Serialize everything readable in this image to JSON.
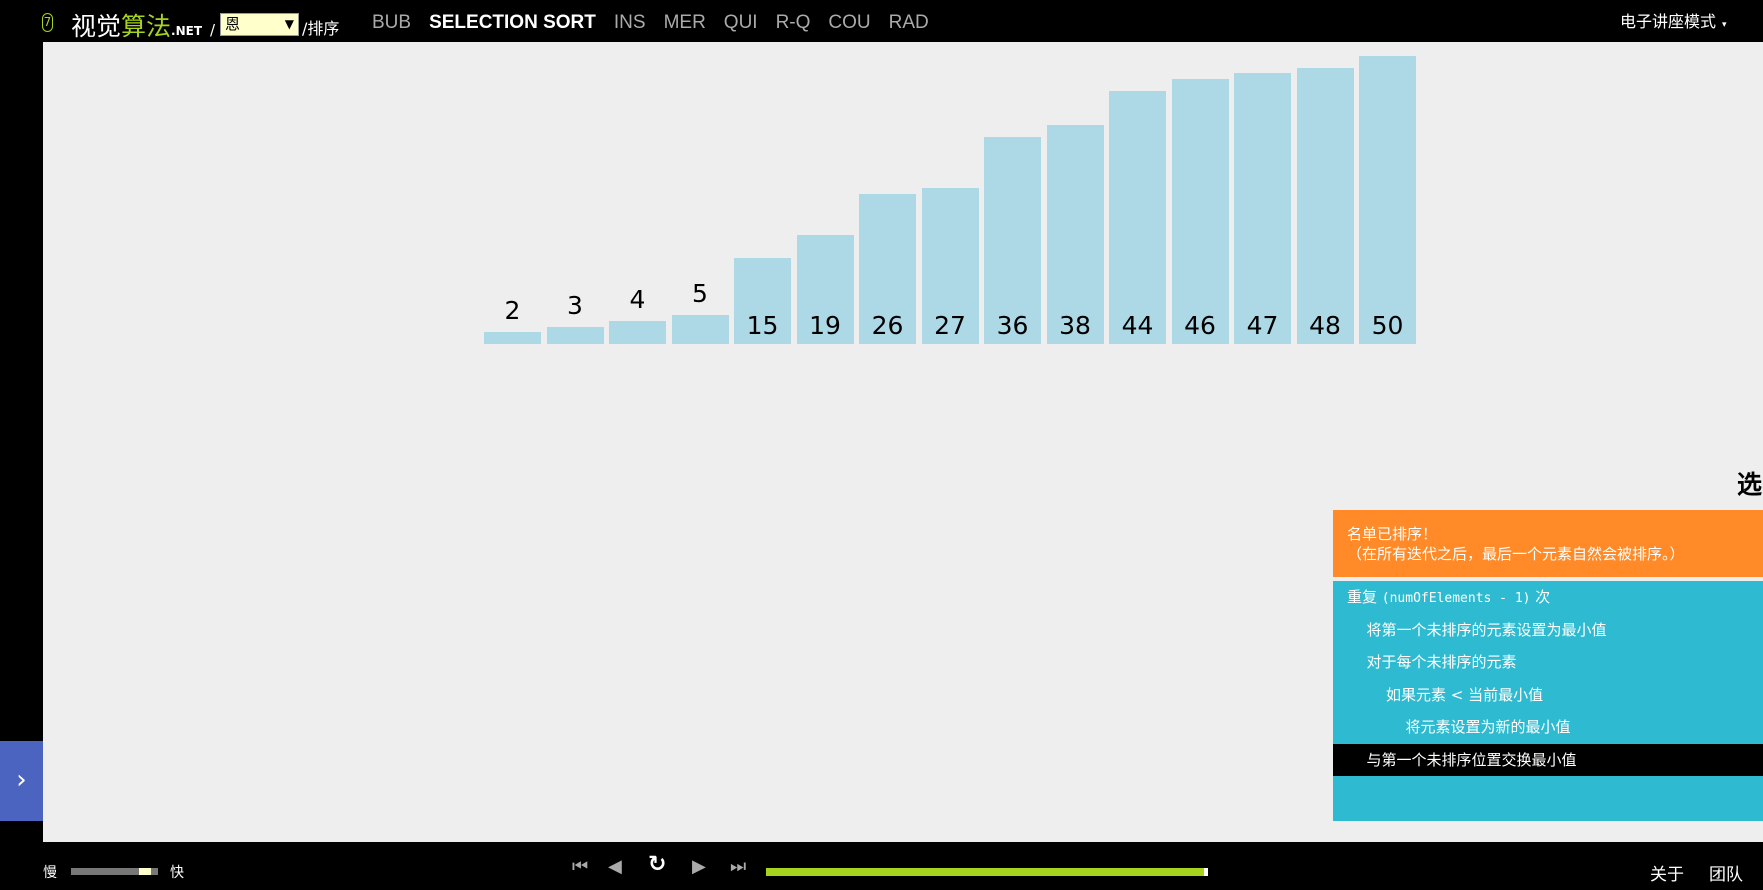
{
  "header": {
    "logo_number": "7",
    "brand_a": "视觉",
    "brand_b": "算法",
    "brand_c": ".NET",
    "slash": "/",
    "language": "恩",
    "sort_label": "/排序",
    "nav": [
      "BUB",
      "SELECTION SORT",
      "INS",
      "MER",
      "QUI",
      "R-Q",
      "COU",
      "RAD"
    ],
    "active_nav": "SELECTION SORT",
    "mode": "电子讲座模式",
    "mode_arrow": "▾"
  },
  "chart_data": {
    "type": "bar",
    "values": [
      2,
      3,
      4,
      5,
      15,
      19,
      26,
      27,
      36,
      38,
      44,
      46,
      47,
      48,
      50
    ],
    "bar_color": "#add8e6"
  },
  "title_partial": "选",
  "status": {
    "line1": "名单已排序！",
    "line2": "（在所有迭代之后，最后一个元素自然会被排序。）"
  },
  "code": {
    "lines": [
      {
        "a": "重复 ",
        "m": "(numOfElements - 1)",
        "b": " 次",
        "indent": 0
      },
      {
        "a": "将第一个未排序的元素设置为最小值",
        "indent": 1
      },
      {
        "a": "对于每个未排序的元素",
        "indent": 1
      },
      {
        "a": "如果元素 < 当前最小值",
        "indent": 2
      },
      {
        "a": "将元素设置为新的最小值",
        "indent": 3
      },
      {
        "a": "与第一个未排序位置交换最小值",
        "indent": 1
      }
    ],
    "highlighted": 5
  },
  "colors": {
    "status": "#ff8a27",
    "code": "#2ebbd1",
    "accent": "#a6d31e",
    "tab": "#4a64c0"
  },
  "footer": {
    "slow": "慢",
    "fast": "快",
    "speed": 0.9,
    "progress": 0.99,
    "about": "关于",
    "team": "团队"
  }
}
